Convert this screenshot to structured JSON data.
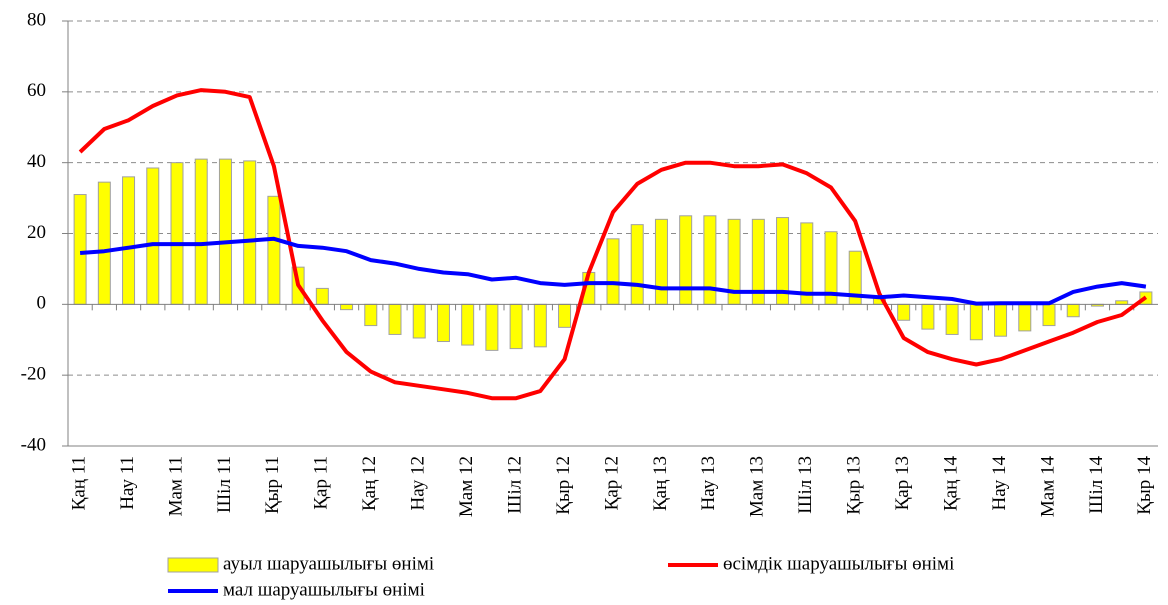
{
  "chart_data": {
    "type": "combo",
    "categories": [
      "Қаң 11",
      null,
      "Нау 11",
      null,
      "Мам 11",
      null,
      "Шіл 11",
      null,
      "Қыр 11",
      null,
      "Қар 11",
      null,
      "Қаң 12",
      null,
      "Нау 12",
      null,
      "Мам 12",
      null,
      "Шіл 12",
      null,
      "Қыр 12",
      null,
      "Қар 12",
      null,
      "Қаң 13",
      null,
      "Нау 13",
      null,
      "Мам 13",
      null,
      "Шіл 13",
      null,
      "Қыр 13",
      null,
      "Қар 13",
      null,
      "Қаң 14",
      null,
      "Нау 14",
      null,
      "Мам 14",
      null,
      "Шіл 14",
      null,
      "Қыр 14"
    ],
    "series": [
      {
        "name": "ауыл шаруашылығы өнімі",
        "type": "bar",
        "color": "#ffff00",
        "values": [
          31,
          34.5,
          36,
          38.5,
          40,
          41,
          41,
          40.5,
          30.5,
          10.5,
          4.5,
          -1.5,
          -6,
          -8.5,
          -9.5,
          -10.5,
          -11.5,
          -13,
          -12.5,
          -12,
          -6.5,
          9,
          18.5,
          22.5,
          24,
          25,
          25,
          24,
          24,
          24.5,
          23,
          20.5,
          15,
          2,
          -4.5,
          -7,
          -8.5,
          -10,
          -9,
          -7.5,
          -6,
          -3.5,
          -0.5,
          1,
          3.5
        ]
      },
      {
        "name": "өсімдік шаруашылығы өнімі",
        "type": "line",
        "color": "#ff0000",
        "values": [
          43,
          49.5,
          52,
          56,
          59,
          60.5,
          60,
          58.5,
          39,
          5.5,
          -4.5,
          -13.5,
          -19,
          -22,
          -23,
          -24,
          -25,
          -26.5,
          -26.5,
          -24.5,
          -15.5,
          9,
          26,
          34,
          38,
          40,
          40,
          39,
          39,
          39.5,
          37,
          33,
          23.5,
          3,
          -9.5,
          -13.5,
          -15.5,
          -17,
          -15.5,
          -13,
          -10.5,
          -8,
          -5,
          -3,
          2
        ]
      },
      {
        "name": "мал шаруашылығы өнімі",
        "type": "line",
        "color": "#0000ff",
        "values": [
          14.5,
          15,
          16,
          17,
          17,
          17,
          17.5,
          18,
          18.5,
          16.5,
          16,
          15,
          12.5,
          11.5,
          10,
          9,
          8.5,
          7,
          7.5,
          6,
          5.5,
          6,
          6,
          5.5,
          4.5,
          4.5,
          4.5,
          3.5,
          3.5,
          3.5,
          3,
          3,
          2.5,
          2,
          2.5,
          2,
          1.5,
          0.2,
          0.3,
          0.3,
          0.3,
          3.5,
          5,
          6,
          5
        ]
      }
    ],
    "ylim": [
      -40,
      80
    ],
    "yticks": [
      -40,
      -20,
      0,
      20,
      40,
      60,
      80
    ],
    "grid": true,
    "legend": "bottom"
  }
}
